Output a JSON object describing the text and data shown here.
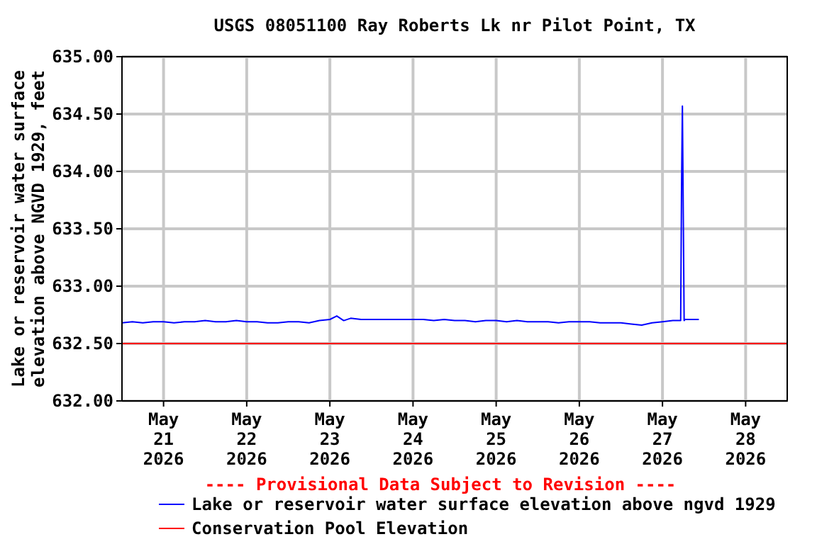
{
  "chart_data": {
    "type": "line",
    "title": "USGS 08051100 Ray Roberts Lk nr Pilot Point, TX",
    "ylabel": "Lake or reservoir water surface\nelevation above NGVD 1929, feet",
    "xlim": [
      "2026-05-20T12:00",
      "2026-05-28T12:00"
    ],
    "xticks": [
      {
        "value": "2026-05-21",
        "label": "May\n21\n2026"
      },
      {
        "value": "2026-05-22",
        "label": "May\n22\n2026"
      },
      {
        "value": "2026-05-23",
        "label": "May\n23\n2026"
      },
      {
        "value": "2026-05-24",
        "label": "May\n24\n2026"
      },
      {
        "value": "2026-05-25",
        "label": "May\n25\n2026"
      },
      {
        "value": "2026-05-26",
        "label": "May\n26\n2026"
      },
      {
        "value": "2026-05-27",
        "label": "May\n27\n2026"
      },
      {
        "value": "2026-05-28",
        "label": "May\n28\n2026"
      }
    ],
    "ylim": [
      632,
      635
    ],
    "yticks": [
      {
        "value": 632,
        "label": "632.00"
      },
      {
        "value": 632.5,
        "label": "632.50"
      },
      {
        "value": 633,
        "label": "633.00"
      },
      {
        "value": 633.5,
        "label": "633.50"
      },
      {
        "value": 634,
        "label": "634.00"
      },
      {
        "value": 634.5,
        "label": "634.50"
      },
      {
        "value": 635,
        "label": "635.00"
      }
    ],
    "grid": true,
    "legend": "bottom",
    "line_style": "solid",
    "annotations": [
      "---- Provisional Data Subject to Revision ----"
    ],
    "series": [
      {
        "name": "Lake or reservoir water surface elevation above ngvd 1929",
        "color": "#0000ff",
        "x": [
          "2026-05-20T12:00",
          "2026-05-20T15:00",
          "2026-05-20T18:00",
          "2026-05-20T21:00",
          "2026-05-21T00:00",
          "2026-05-21T03:00",
          "2026-05-21T06:00",
          "2026-05-21T09:00",
          "2026-05-21T12:00",
          "2026-05-21T15:00",
          "2026-05-21T18:00",
          "2026-05-21T21:00",
          "2026-05-22T00:00",
          "2026-05-22T03:00",
          "2026-05-22T06:00",
          "2026-05-22T09:00",
          "2026-05-22T12:00",
          "2026-05-22T15:00",
          "2026-05-22T18:00",
          "2026-05-22T21:00",
          "2026-05-23T00:00",
          "2026-05-23T02:00",
          "2026-05-23T04:00",
          "2026-05-23T06:00",
          "2026-05-23T09:00",
          "2026-05-23T12:00",
          "2026-05-23T15:00",
          "2026-05-23T18:00",
          "2026-05-23T21:00",
          "2026-05-24T00:00",
          "2026-05-24T03:00",
          "2026-05-24T06:00",
          "2026-05-24T09:00",
          "2026-05-24T12:00",
          "2026-05-24T15:00",
          "2026-05-24T18:00",
          "2026-05-24T21:00",
          "2026-05-25T00:00",
          "2026-05-25T03:00",
          "2026-05-25T06:00",
          "2026-05-25T09:00",
          "2026-05-25T12:00",
          "2026-05-25T15:00",
          "2026-05-25T18:00",
          "2026-05-25T21:00",
          "2026-05-26T00:00",
          "2026-05-26T03:00",
          "2026-05-26T06:00",
          "2026-05-26T09:00",
          "2026-05-26T12:00",
          "2026-05-26T15:00",
          "2026-05-26T18:00",
          "2026-05-26T21:00",
          "2026-05-27T00:00",
          "2026-05-27T03:00",
          "2026-05-27T05:15",
          "2026-05-27T05:30",
          "2026-05-27T05:45",
          "2026-05-27T06:00",
          "2026-05-27T06:15",
          "2026-05-27T06:30",
          "2026-05-27T08:00",
          "2026-05-27T10:30"
        ],
        "values": [
          632.68,
          632.69,
          632.68,
          632.69,
          632.69,
          632.68,
          632.69,
          632.69,
          632.7,
          632.69,
          632.69,
          632.7,
          632.69,
          632.69,
          632.68,
          632.68,
          632.69,
          632.69,
          632.68,
          632.7,
          632.71,
          632.74,
          632.7,
          632.72,
          632.71,
          632.71,
          632.71,
          632.71,
          632.71,
          632.71,
          632.71,
          632.7,
          632.71,
          632.7,
          632.7,
          632.69,
          632.7,
          632.7,
          632.69,
          632.7,
          632.69,
          632.69,
          632.69,
          632.68,
          632.69,
          632.69,
          632.69,
          632.68,
          632.68,
          632.68,
          632.67,
          632.66,
          632.68,
          632.69,
          632.7,
          632.7,
          633.86,
          634.57,
          633.63,
          632.7,
          632.71,
          632.71,
          632.71
        ]
      },
      {
        "name": "Conservation Pool Elevation",
        "color": "#ff0000",
        "x": [
          "2026-05-20T12:00",
          "2026-05-28T12:00"
        ],
        "values": [
          632.5,
          632.5
        ]
      }
    ]
  }
}
